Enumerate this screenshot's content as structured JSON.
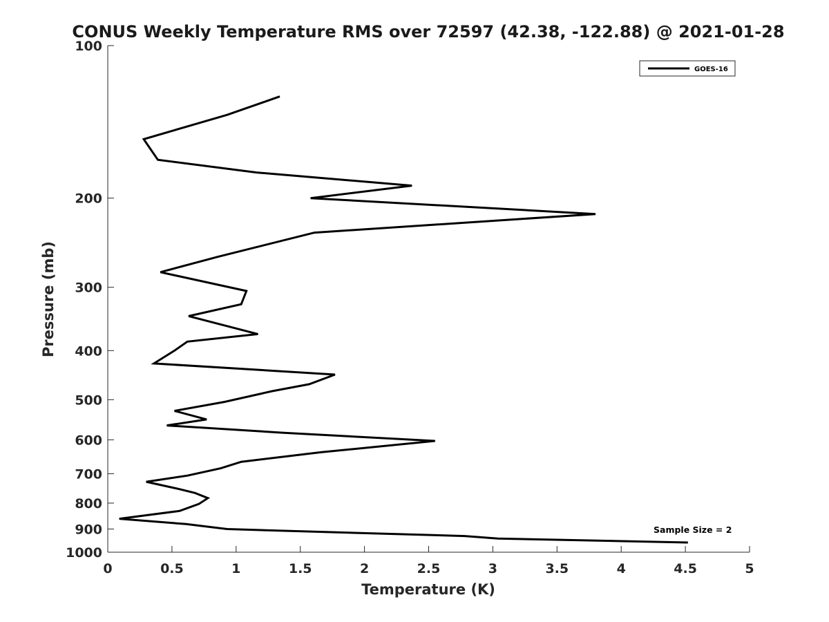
{
  "chart_data": {
    "type": "line",
    "title": "CONUS Weekly Temperature RMS over 72597 (42.38, -122.88) @ 2021-01-28",
    "xlabel": "Temperature (K)",
    "ylabel": "Pressure (mb)",
    "xlim": [
      0,
      5
    ],
    "ylim": [
      100,
      1000
    ],
    "y_scale": "log",
    "y_reversed": true,
    "x_ticks": [
      0,
      0.5,
      1,
      1.5,
      2,
      2.5,
      3,
      3.5,
      4,
      4.5,
      5
    ],
    "x_tick_labels": [
      "0",
      "0.5",
      "1",
      "1.5",
      "2",
      "2.5",
      "3",
      "3.5",
      "4",
      "4.5",
      "5"
    ],
    "y_ticks": [
      100,
      200,
      300,
      400,
      500,
      600,
      700,
      800,
      900,
      1000
    ],
    "y_tick_labels": [
      "100",
      "200",
      "300",
      "400",
      "500",
      "600",
      "700",
      "800",
      "900",
      "1000"
    ],
    "grid": false,
    "legend_position": "top-right",
    "annotation": "Sample Size = 2",
    "series": [
      {
        "name": "GOES-16",
        "color": "#000000",
        "points": [
          [
            1.34,
            126
          ],
          [
            0.93,
            137
          ],
          [
            0.28,
            153
          ],
          [
            0.39,
            168
          ],
          [
            1.16,
            178
          ],
          [
            2.37,
            189
          ],
          [
            1.58,
            200
          ],
          [
            3.8,
            215
          ],
          [
            1.61,
            234
          ],
          [
            0.86,
            261
          ],
          [
            0.41,
            280
          ],
          [
            1.08,
            305
          ],
          [
            1.04,
            324
          ],
          [
            0.63,
            342
          ],
          [
            1.17,
            371
          ],
          [
            0.62,
            384
          ],
          [
            0.52,
            400
          ],
          [
            0.36,
            424
          ],
          [
            1.77,
            446
          ],
          [
            1.57,
            466
          ],
          [
            1.28,
            481
          ],
          [
            0.91,
            505
          ],
          [
            0.52,
            526
          ],
          [
            0.77,
            547
          ],
          [
            0.46,
            562
          ],
          [
            1.36,
            581
          ],
          [
            2.55,
            603
          ],
          [
            1.66,
            635
          ],
          [
            1.04,
            663
          ],
          [
            0.88,
            683
          ],
          [
            0.62,
            706
          ],
          [
            0.3,
            726
          ],
          [
            0.56,
            751
          ],
          [
            0.68,
            764
          ],
          [
            0.78,
            782
          ],
          [
            0.71,
            803
          ],
          [
            0.56,
            829
          ],
          [
            0.09,
            859
          ],
          [
            0.61,
            880
          ],
          [
            0.93,
            900
          ],
          [
            1.81,
            914
          ],
          [
            2.78,
            929
          ],
          [
            3.04,
            940
          ],
          [
            4.52,
            957
          ]
        ]
      }
    ]
  }
}
